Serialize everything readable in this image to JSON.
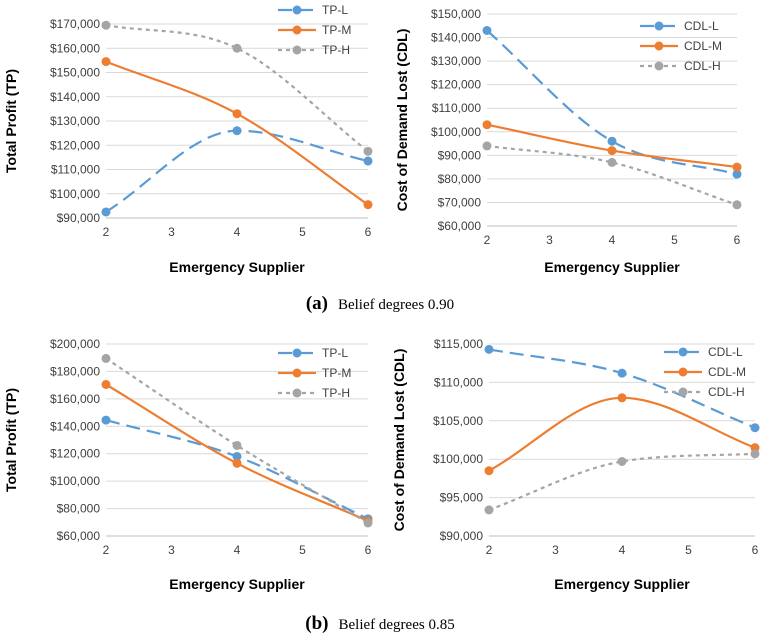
{
  "captions": [
    {
      "letter": "(a)",
      "text": "Belief degrees 0.90"
    },
    {
      "letter": "(b)",
      "text": "Belief degrees 0.85"
    }
  ],
  "colors": {
    "L": "#5B9BD5",
    "M": "#ED7D31",
    "H": "#A5A5A5",
    "grid": "#D9D9D9",
    "axis": "#BFBFBF",
    "text": "#404040"
  },
  "chart_data": [
    {
      "type": "line",
      "xlabel": "Emergency Supplier",
      "ylabel": "Total Profit (TP)",
      "xlim": [
        2,
        6
      ],
      "x_ticks": [
        "2",
        "3",
        "4",
        "5",
        "6"
      ],
      "ylim": [
        90000,
        170000
      ],
      "y_ticks": [
        "$90,000",
        "$100,000",
        "$110,000",
        "$120,000",
        "$130,000",
        "$140,000",
        "$150,000",
        "$160,000",
        "$170,000"
      ],
      "grid": true,
      "legend": "top-right",
      "x": [
        2,
        4,
        6
      ],
      "series": [
        {
          "name": "TP-L",
          "key": "L",
          "style": "longdash",
          "values": [
            92500,
            126000,
            113500
          ]
        },
        {
          "name": "TP-M",
          "key": "M",
          "style": "solid",
          "values": [
            154500,
            133000,
            95500
          ]
        },
        {
          "name": "TP-H",
          "key": "H",
          "style": "shortdash",
          "values": [
            169500,
            160000,
            117500
          ]
        }
      ]
    },
    {
      "type": "line",
      "xlabel": "Emergency Supplier",
      "ylabel": "Cost of Demand Lost (CDL)",
      "xlim": [
        2,
        6
      ],
      "x_ticks": [
        "2",
        "3",
        "4",
        "5",
        "6"
      ],
      "ylim": [
        60000,
        150000
      ],
      "y_ticks": [
        "$60,000",
        "$70,000",
        "$80,000",
        "$90,000",
        "$100,000",
        "$110,000",
        "$120,000",
        "$130,000",
        "$140,000",
        "$150,000"
      ],
      "grid": true,
      "legend": "top-right",
      "x": [
        2,
        4,
        6
      ],
      "series": [
        {
          "name": "CDL-L",
          "key": "L",
          "style": "longdash",
          "values": [
            143000,
            96000,
            82000
          ]
        },
        {
          "name": "CDL-M",
          "key": "M",
          "style": "solid",
          "values": [
            103000,
            92000,
            85000
          ]
        },
        {
          "name": "CDL-H",
          "key": "H",
          "style": "shortdash",
          "values": [
            94000,
            87000,
            69000
          ]
        }
      ]
    },
    {
      "type": "line",
      "xlabel": "Emergency Supplier",
      "ylabel": "Total Profit (TP)",
      "xlim": [
        2,
        6
      ],
      "x_ticks": [
        "2",
        "3",
        "4",
        "5",
        "6"
      ],
      "ylim": [
        60000,
        200000
      ],
      "y_ticks": [
        "$60,000",
        "$80,000",
        "$100,000",
        "$120,000",
        "$140,000",
        "$160,000",
        "$180,000",
        "$200,000"
      ],
      "grid": true,
      "legend": "top-right",
      "x": [
        2,
        4,
        6
      ],
      "series": [
        {
          "name": "TP-L",
          "key": "L",
          "style": "longdash",
          "values": [
            144500,
            118000,
            72500
          ]
        },
        {
          "name": "TP-M",
          "key": "M",
          "style": "solid",
          "values": [
            170500,
            113000,
            71000
          ]
        },
        {
          "name": "TP-H",
          "key": "H",
          "style": "shortdash",
          "values": [
            189500,
            126000,
            69500
          ]
        }
      ]
    },
    {
      "type": "line",
      "xlabel": "Emergency Supplier",
      "ylabel": "Cost of Demand Lost (CDL)",
      "xlim": [
        2,
        6
      ],
      "x_ticks": [
        "2",
        "3",
        "4",
        "5",
        "6"
      ],
      "ylim": [
        90000,
        115000
      ],
      "y_ticks": [
        "$90,000",
        "$95,000",
        "$100,000",
        "$105,000",
        "$110,000",
        "$115,000"
      ],
      "grid": true,
      "legend": "top-right",
      "x": [
        2,
        4,
        6
      ],
      "series": [
        {
          "name": "CDL-L",
          "key": "L",
          "style": "longdash",
          "values": [
            114300,
            111200,
            104100
          ]
        },
        {
          "name": "CDL-M",
          "key": "M",
          "style": "solid",
          "values": [
            98500,
            108000,
            101500
          ]
        },
        {
          "name": "CDL-H",
          "key": "H",
          "style": "shortdash",
          "values": [
            93400,
            99700,
            100700
          ]
        }
      ]
    }
  ]
}
